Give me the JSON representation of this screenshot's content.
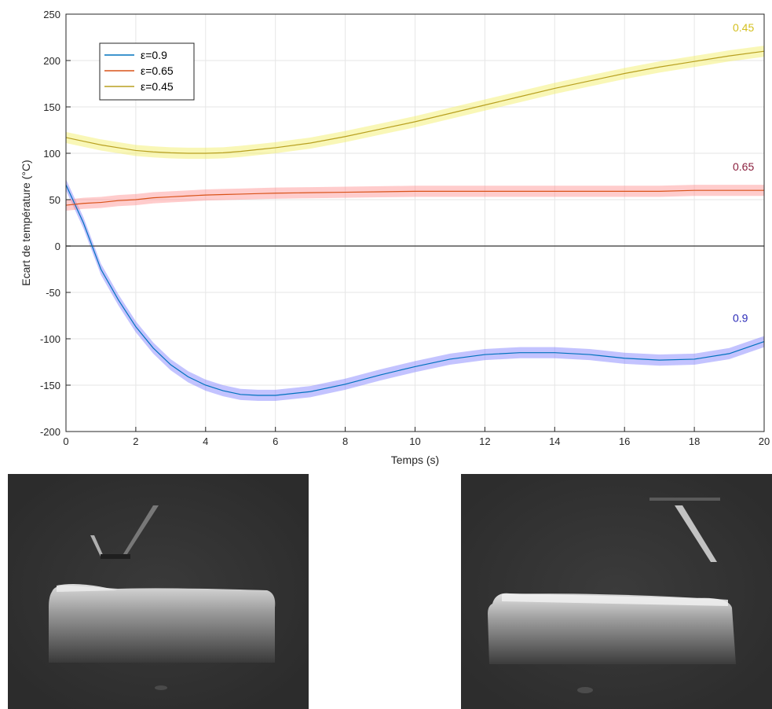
{
  "chart_data": {
    "type": "line",
    "xlabel": "Temps (s)",
    "ylabel": "Ecart de température (°C)",
    "xlim": [
      0,
      20
    ],
    "ylim": [
      -200,
      250
    ],
    "xticks": [
      0,
      2,
      4,
      6,
      8,
      10,
      12,
      14,
      16,
      18,
      20
    ],
    "yticks": [
      -200,
      -150,
      -100,
      -50,
      0,
      50,
      100,
      150,
      200,
      250
    ],
    "grid": true,
    "zero_line": true,
    "legend_position": "top-left",
    "x": [
      0,
      0.5,
      1,
      1.5,
      2,
      2.5,
      3,
      3.5,
      4,
      4.5,
      5,
      5.5,
      6,
      7,
      8,
      9,
      10,
      11,
      12,
      13,
      14,
      15,
      16,
      17,
      18,
      19,
      20
    ],
    "series": [
      {
        "name": "ε=0.9",
        "end_label": "0.9",
        "color": "#0072BD",
        "band_color": "#7b7bff",
        "label_color": "#2b2bb8",
        "band_halfwidth": 6,
        "values": [
          66,
          25,
          -25,
          -58,
          -87,
          -110,
          -128,
          -141,
          -150,
          -156,
          -160,
          -161,
          -161,
          -157,
          -149,
          -139,
          -130,
          -122,
          -117,
          -115,
          -115,
          -117,
          -121,
          -123,
          -122,
          -116,
          -103
        ]
      },
      {
        "name": "ε=0.65",
        "end_label": "0.65",
        "color": "#D95319",
        "band_color": "#ff8e8e",
        "label_color": "#8a1f3d",
        "band_halfwidth": 6,
        "values": [
          44,
          46,
          47,
          49,
          50,
          52,
          53,
          54,
          55,
          55.5,
          56,
          56.5,
          57,
          57.5,
          58,
          58.5,
          59,
          59,
          59,
          59,
          59,
          59,
          59,
          59,
          60,
          60,
          60
        ]
      },
      {
        "name": "ε=0.45",
        "end_label": "0.45",
        "color": "#B8A020",
        "band_color": "#f2ee60",
        "label_color": "#d4c020",
        "band_halfwidth": 6,
        "values": [
          117,
          113,
          109,
          106,
          103,
          101.5,
          100.5,
          100,
          100,
          100.5,
          102,
          104,
          106,
          111,
          118,
          126,
          134,
          143,
          152,
          161,
          170,
          178,
          186,
          193,
          199,
          205,
          210
        ]
      }
    ]
  },
  "photos": [
    {
      "name": "left-frame",
      "description_icon": "thermal-camera-frame"
    },
    {
      "name": "right-frame",
      "description_icon": "thermal-camera-frame"
    }
  ],
  "colors": {
    "grid": "#e6e6e6",
    "axis": "#262626",
    "zero_line": "#555555"
  }
}
